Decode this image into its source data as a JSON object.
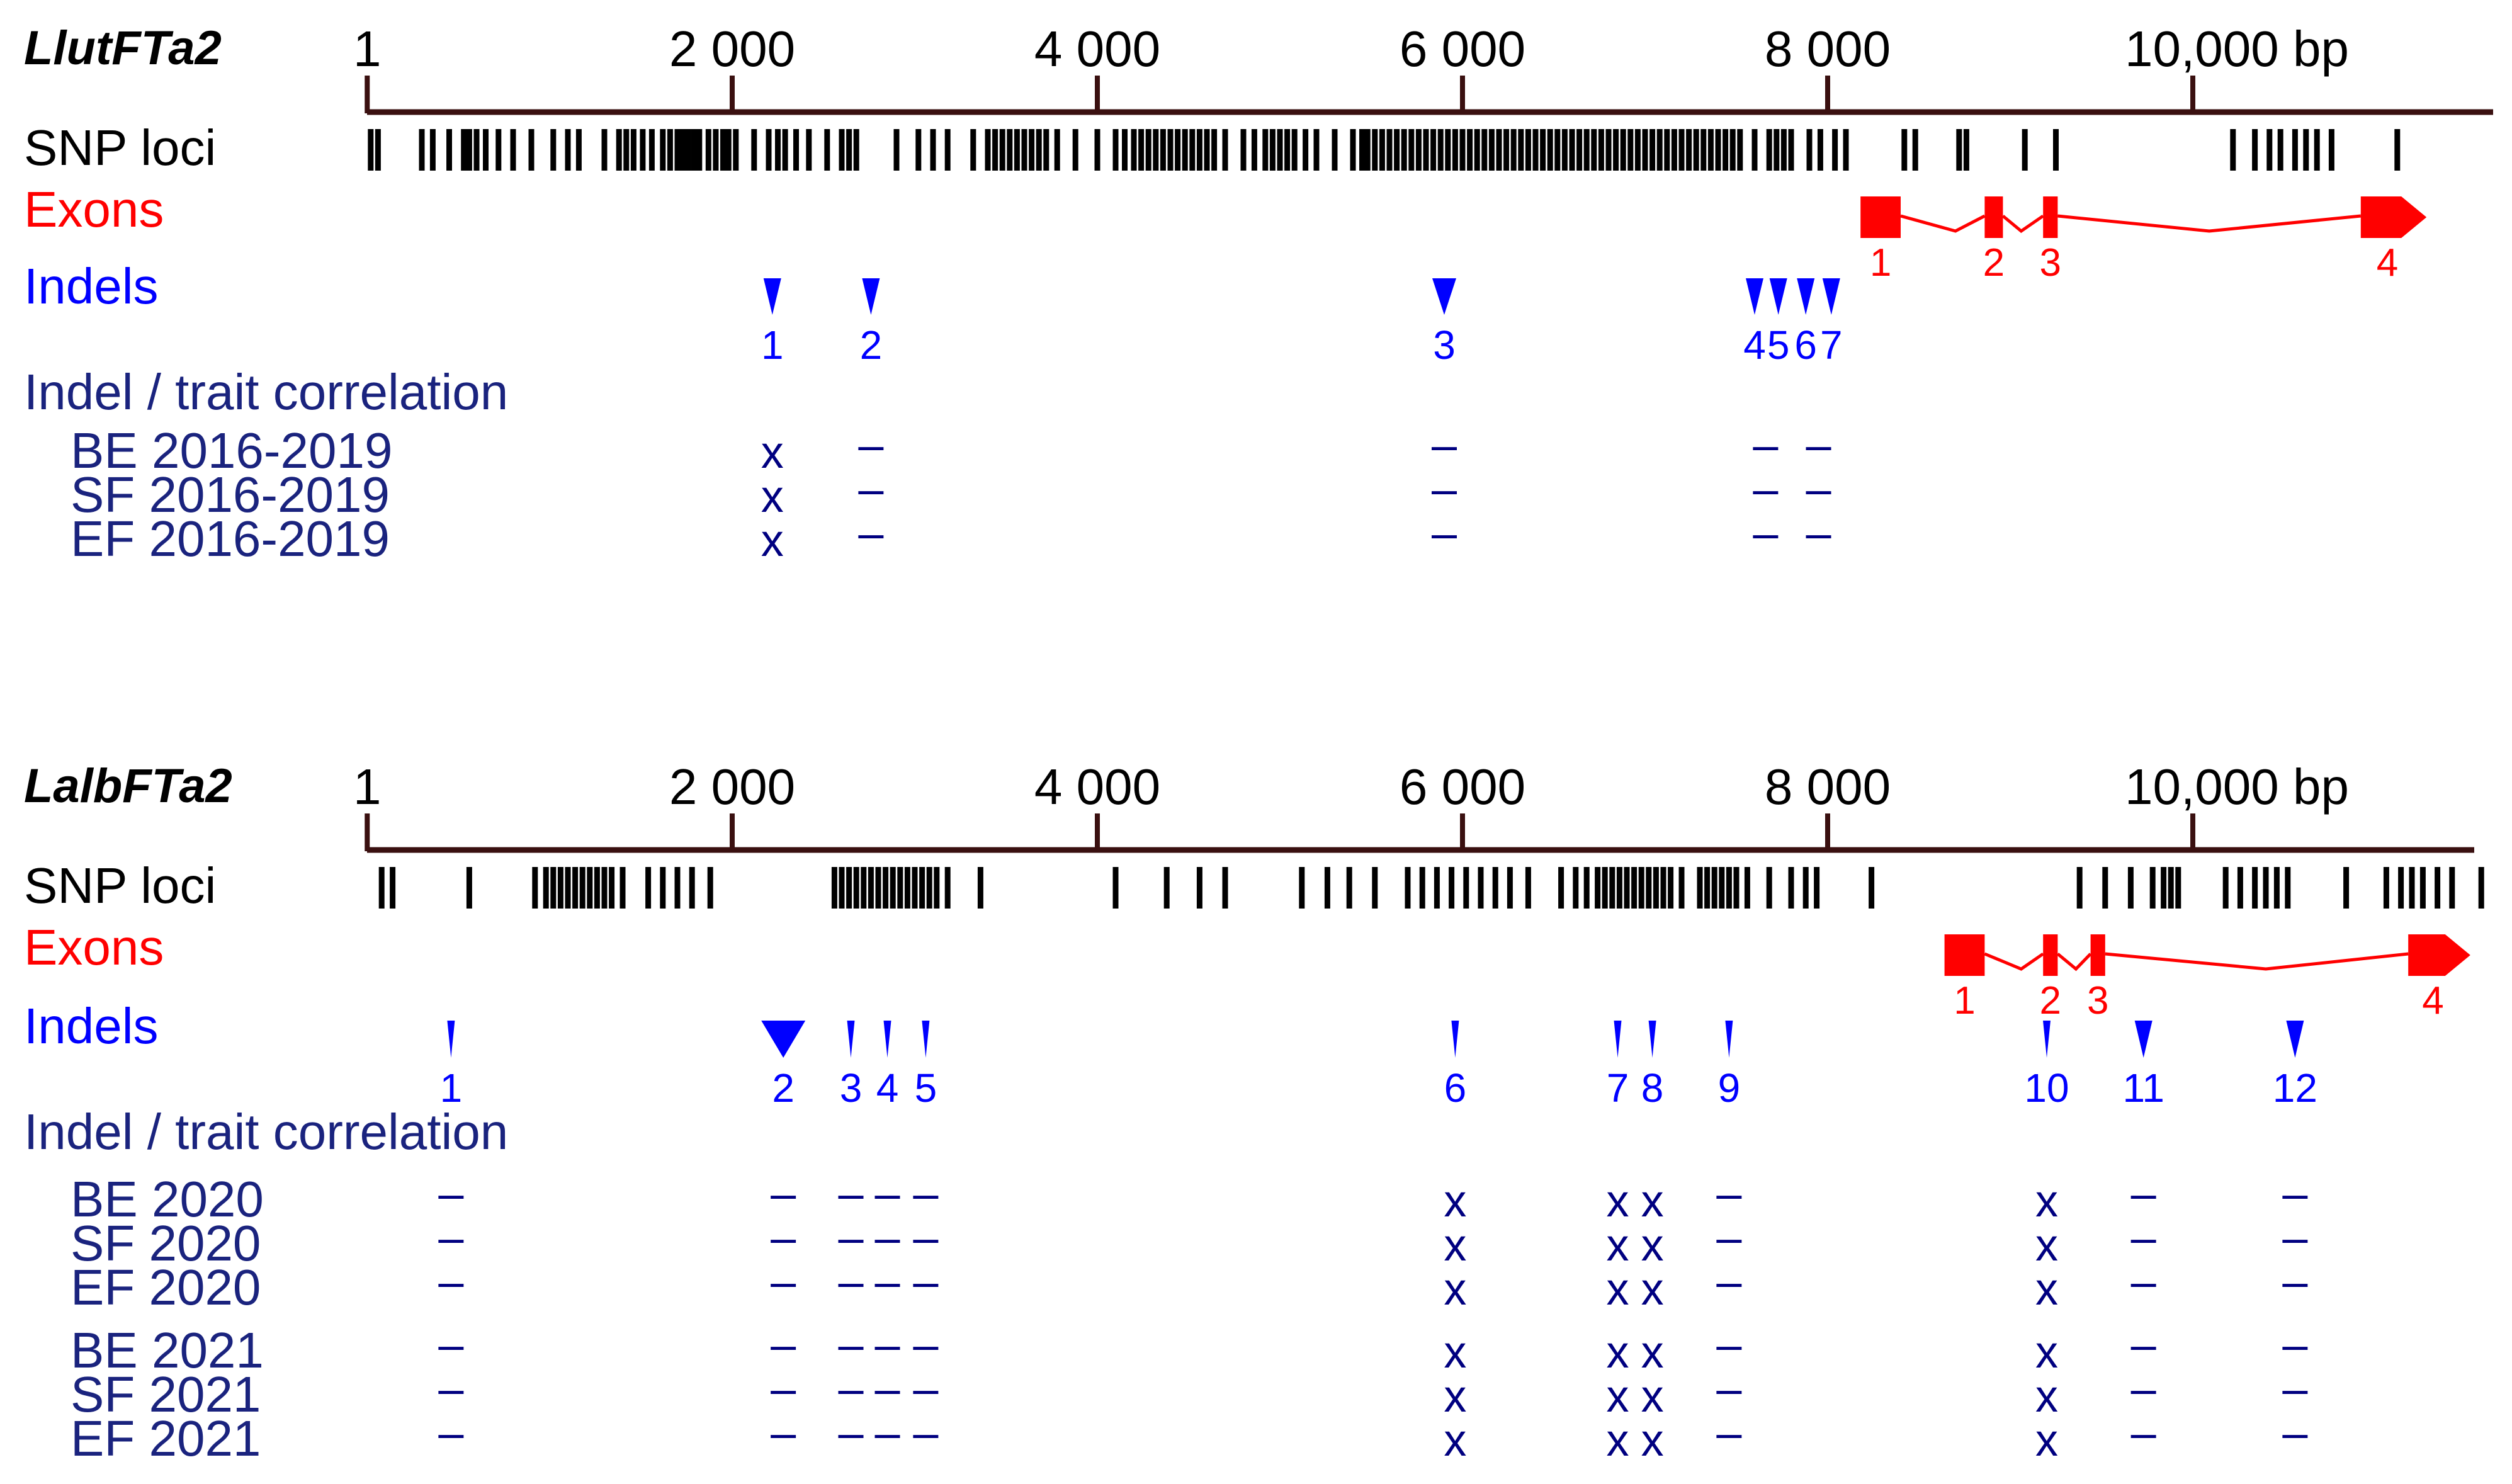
{
  "colors": {
    "axis_line": "#3a1010",
    "snp": "#000000",
    "exon": "#ff0000",
    "indel": "#0000ff",
    "corr": "#000080",
    "label_dark": "#000000",
    "label_navy": "#1a237e"
  },
  "panels": [
    {
      "id": "lutea",
      "gene": "LlutFTa2",
      "scale_ticks": [
        {
          "bp": 1,
          "label": "1"
        },
        {
          "bp": 2000,
          "label": "2 000"
        },
        {
          "bp": 4000,
          "label": "4 000"
        },
        {
          "bp": 6000,
          "label": "6 000"
        },
        {
          "bp": 8000,
          "label": "8 000"
        },
        {
          "bp": 10000,
          "label": "10,000 bp"
        }
      ],
      "scale_max_bp": 11400,
      "snp_label": "SNP loci",
      "exons_label": "Exons",
      "indels_label": "Indels",
      "corr_label": "Indel / trait correlation",
      "snp_positions": [
        20,
        60,
        300,
        360,
        450,
        530,
        560,
        600,
        650,
        720,
        800,
        900,
        1020,
        1100,
        1160,
        1300,
        1380,
        1420,
        1460,
        1510,
        1560,
        1620,
        1660,
        1700,
        1730,
        1760,
        1790,
        1820,
        1870,
        1910,
        1950,
        1980,
        2020,
        2120,
        2200,
        2250,
        2290,
        2350,
        2420,
        2520,
        2600,
        2640,
        2680,
        2900,
        3020,
        3100,
        3180,
        3320,
        3400,
        3440,
        3480,
        3520,
        3560,
        3600,
        3640,
        3680,
        3720,
        3780,
        3880,
        4000,
        4100,
        4150,
        4200,
        4240,
        4280,
        4320,
        4360,
        4400,
        4440,
        4480,
        4520,
        4560,
        4600,
        4640,
        4700,
        4800,
        4860,
        4920,
        4960,
        5000,
        5040,
        5080,
        5140,
        5200,
        5300,
        5400,
        5450,
        5480,
        5520,
        5560,
        5600,
        5640,
        5680,
        5720,
        5760,
        5800,
        5840,
        5880,
        5920,
        5960,
        6000,
        6040,
        6080,
        6120,
        6160,
        6200,
        6240,
        6280,
        6320,
        6360,
        6400,
        6440,
        6480,
        6520,
        6560,
        6600,
        6640,
        6680,
        6720,
        6760,
        6800,
        6840,
        6880,
        6920,
        6960,
        7000,
        7040,
        7080,
        7120,
        7160,
        7200,
        7240,
        7280,
        7320,
        7360,
        7400,
        7440,
        7480,
        7520,
        7600,
        7680,
        7720,
        7760,
        7800,
        7900,
        7960,
        8040,
        8100,
        8420,
        8480,
        8720,
        8760,
        9080,
        9250,
        10220,
        10340,
        10420,
        10480,
        10560,
        10620,
        10680,
        10760,
        11120
      ],
      "exons": [
        {
          "label": "1",
          "start": 8180,
          "end": 8400
        },
        {
          "label": "2",
          "start": 8860,
          "end": 8960
        },
        {
          "label": "3",
          "start": 9180,
          "end": 9260
        },
        {
          "label": "4",
          "start": 10920,
          "end": 11280
        }
      ],
      "introns": [
        {
          "from": 8400,
          "to": 8860,
          "peak": 8700
        },
        {
          "from": 8960,
          "to": 9180,
          "peak": 9060
        },
        {
          "from": 9260,
          "to": 10920,
          "peak": 10090
        }
      ],
      "indels": [
        {
          "label": "1",
          "pos": 2220,
          "w": "m"
        },
        {
          "label": "2",
          "pos": 2760,
          "w": "m"
        },
        {
          "label": "3",
          "pos": 5900,
          "w": "l"
        },
        {
          "label": "4",
          "pos": 7600,
          "w": "m"
        },
        {
          "label": "5",
          "pos": 7730,
          "w": "m"
        },
        {
          "label": "6",
          "pos": 7880,
          "w": "m"
        },
        {
          "label": "7",
          "pos": 8020,
          "w": "m"
        }
      ],
      "corr_rows": [
        {
          "label": "BE 2016-2019",
          "marks": [
            "x",
            "–",
            "–",
            "–",
            "–"
          ]
        },
        {
          "label": "SF 2016-2019",
          "marks": [
            "x",
            "–",
            "–",
            "–",
            "–"
          ]
        },
        {
          "label": "EF 2016-2019",
          "marks": [
            "x",
            "–",
            "–",
            "–",
            "–"
          ]
        }
      ],
      "corr_positions": [
        2220,
        2760,
        5900,
        7660,
        7950
      ]
    },
    {
      "id": "albus",
      "gene": "LalbFTa2",
      "scale_ticks": [
        {
          "bp": 1,
          "label": "1"
        },
        {
          "bp": 2000,
          "label": "2 000"
        },
        {
          "bp": 4000,
          "label": "4 000"
        },
        {
          "bp": 6000,
          "label": "6 000"
        },
        {
          "bp": 8000,
          "label": "8 000"
        },
        {
          "bp": 10000,
          "label": "10,000 bp"
        }
      ],
      "scale_max_bp": 11600,
      "snp_label": "SNP loci",
      "exons_label": "Exons",
      "indels_label": "Indels",
      "corr_label": "Indel / trait correlation",
      "snp_positions": [
        80,
        140,
        560,
        920,
        980,
        1020,
        1060,
        1100,
        1140,
        1180,
        1220,
        1260,
        1300,
        1340,
        1400,
        1540,
        1620,
        1700,
        1780,
        1880,
        2560,
        2600,
        2640,
        2680,
        2720,
        2760,
        2800,
        2840,
        2880,
        2920,
        2960,
        3000,
        3040,
        3080,
        3120,
        3180,
        3360,
        4100,
        4380,
        4560,
        4700,
        5120,
        5260,
        5380,
        5520,
        5700,
        5780,
        5860,
        5940,
        6020,
        6100,
        6180,
        6260,
        6360,
        6540,
        6620,
        6680,
        6740,
        6780,
        6820,
        6860,
        6900,
        6940,
        6980,
        7020,
        7060,
        7100,
        7140,
        7200,
        7300,
        7340,
        7380,
        7420,
        7460,
        7500,
        7560,
        7680,
        7800,
        7880,
        7940,
        8240,
        9380,
        9520,
        9660,
        9780,
        9840,
        9880,
        9920,
        10180,
        10260,
        10340,
        10400,
        10460,
        10520,
        10840,
        11060,
        11140,
        11200,
        11260,
        11340,
        11420,
        11580
      ],
      "exons": [
        {
          "label": "1",
          "start": 8640,
          "end": 8860
        },
        {
          "label": "2",
          "start": 9180,
          "end": 9260
        },
        {
          "label": "3",
          "start": 9440,
          "end": 9520
        },
        {
          "label": "4",
          "start": 11180,
          "end": 11520
        }
      ],
      "introns": [
        {
          "from": 8860,
          "to": 9180,
          "peak": 9060
        },
        {
          "from": 9260,
          "to": 9440,
          "peak": 9360
        },
        {
          "from": 9520,
          "to": 11180,
          "peak": 10400
        }
      ],
      "indels": [
        {
          "label": "1",
          "pos": 460,
          "w": "s"
        },
        {
          "label": "2",
          "pos": 2280,
          "w": "xl"
        },
        {
          "label": "3",
          "pos": 2650,
          "w": "s"
        },
        {
          "label": "4",
          "pos": 2850,
          "w": "s"
        },
        {
          "label": "5",
          "pos": 3060,
          "w": "s"
        },
        {
          "label": "6",
          "pos": 5960,
          "w": "s"
        },
        {
          "label": "7",
          "pos": 6850,
          "w": "s"
        },
        {
          "label": "8",
          "pos": 7040,
          "w": "s"
        },
        {
          "label": "9",
          "pos": 7460,
          "w": "s"
        },
        {
          "label": "10",
          "pos": 9200,
          "w": "s"
        },
        {
          "label": "11",
          "pos": 9730,
          "w": "m"
        },
        {
          "label": "12",
          "pos": 10560,
          "w": "m"
        }
      ],
      "corr_rows": [
        {
          "label": "BE 2020",
          "marks": [
            "–",
            "–",
            "–",
            "–",
            "–",
            "x",
            "x",
            "x",
            "–",
            "x",
            "–",
            "–"
          ]
        },
        {
          "label": "SF 2020",
          "marks": [
            "–",
            "–",
            "–",
            "–",
            "–",
            "x",
            "x",
            "x",
            "–",
            "x",
            "–",
            "–"
          ]
        },
        {
          "label": "EF 2020",
          "marks": [
            "–",
            "–",
            "–",
            "–",
            "–",
            "x",
            "x",
            "x",
            "–",
            "x",
            "–",
            "–"
          ]
        },
        {
          "label": "BE 2021",
          "marks": [
            "–",
            "–",
            "–",
            "–",
            "–",
            "x",
            "x",
            "x",
            "–",
            "x",
            "–",
            "–"
          ]
        },
        {
          "label": "SF 2021",
          "marks": [
            "–",
            "–",
            "–",
            "–",
            "–",
            "x",
            "x",
            "x",
            "–",
            "x",
            "–",
            "–"
          ]
        },
        {
          "label": "EF 2021",
          "marks": [
            "–",
            "–",
            "–",
            "–",
            "–",
            "x",
            "x",
            "x",
            "–",
            "x",
            "–",
            "–"
          ]
        }
      ],
      "corr_positions": [
        460,
        2280,
        2650,
        2850,
        3060,
        5960,
        6850,
        7040,
        7460,
        9200,
        9730,
        10560
      ]
    }
  ]
}
